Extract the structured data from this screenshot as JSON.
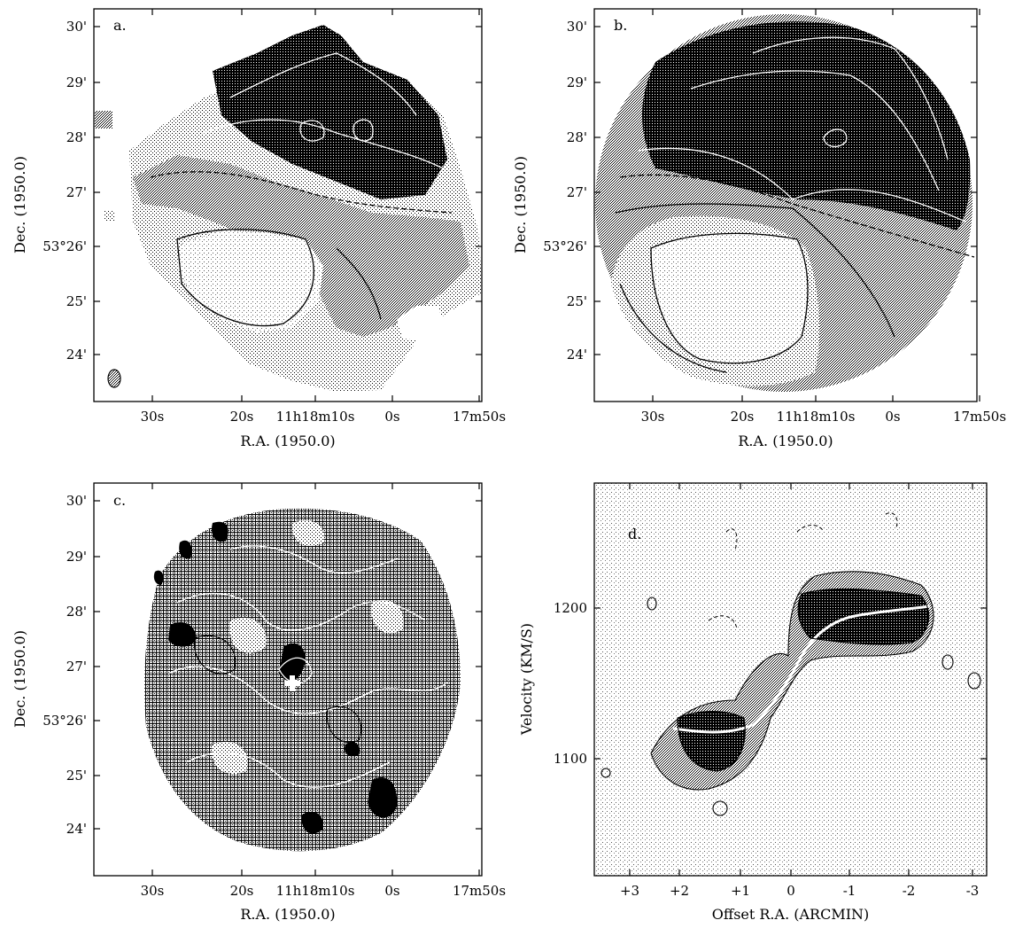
{
  "chart_data": [
    {
      "panel": "a",
      "type": "heatmap",
      "panel_label": "a.",
      "xlabel": "R.A. (1950.0)",
      "ylabel": "Dec. (1950.0)",
      "x_ticks": [
        "30s",
        "20s",
        "11h18m10s",
        "0s",
        "17m50s"
      ],
      "y_ticks": [
        "30'",
        "29'",
        "28'",
        "27'",
        "53°26'",
        "25'",
        "24'"
      ],
      "grid": false,
      "legend": "none"
    },
    {
      "panel": "b",
      "type": "heatmap",
      "panel_label": "b.",
      "xlabel": "R.A. (1950.0)",
      "ylabel": "Dec. (1950.0)",
      "x_ticks": [
        "30s",
        "20s",
        "11h18m10s",
        "0s",
        "17m50s"
      ],
      "y_ticks": [
        "30'",
        "29'",
        "28'",
        "27'",
        "53°26'",
        "25'",
        "24'"
      ],
      "grid": false,
      "legend": "none"
    },
    {
      "panel": "c",
      "type": "heatmap",
      "panel_label": "c.",
      "xlabel": "R.A. (1950.0)",
      "ylabel": "Dec. (1950.0)",
      "x_ticks": [
        "30s",
        "20s",
        "11h18m10s",
        "0s",
        "17m50s"
      ],
      "y_ticks": [
        "30'",
        "29'",
        "28'",
        "27'",
        "53°26'",
        "25'",
        "24'"
      ],
      "grid": false,
      "legend": "none"
    },
    {
      "panel": "d",
      "type": "heatmap",
      "panel_label": "d.",
      "xlabel": "Offset R.A. (ARCMIN)",
      "ylabel": "Velocity (KM/S)",
      "x_ticks": [
        "+3",
        "+2",
        "+1",
        "0",
        "-1",
        "-2",
        "-3"
      ],
      "y_ticks": [
        "1200",
        "1100"
      ],
      "grid": false,
      "legend": "none"
    }
  ]
}
